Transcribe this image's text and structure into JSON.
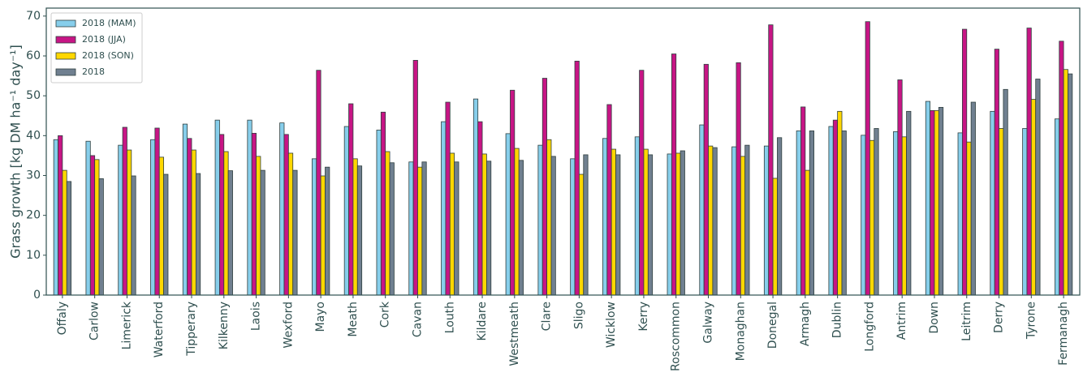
{
  "chart_data": {
    "type": "bar",
    "ylabel": "Grass growth [kg DM ha⁻¹ day⁻¹]",
    "categories": [
      "Offaly",
      "Carlow",
      "Limerick",
      "Waterford",
      "Tipperary",
      "Kilkenny",
      "Laois",
      "Wexford",
      "Mayo",
      "Meath",
      "Cork",
      "Cavan",
      "Louth",
      "Kildare",
      "Westmeath",
      "Clare",
      "Sligo",
      "Wicklow",
      "Kerry",
      "Roscommon",
      "Galway",
      "Monaghan",
      "Donegal",
      "Armagh",
      "Dublin",
      "Longford",
      "Antrim",
      "Down",
      "Leitrim",
      "Derry",
      "Tyrone",
      "Fermanagh"
    ],
    "series": [
      {
        "name": "2018 (MAM)",
        "color": "#87ceeb",
        "values": [
          39,
          38.6,
          37.6,
          39,
          42.9,
          43.9,
          43.9,
          43.2,
          34.2,
          42.3,
          41.4,
          33.4,
          43.5,
          49.2,
          40.5,
          37.6,
          34.2,
          39.3,
          39.7,
          35.4,
          42.7,
          37.2,
          37.4,
          41.2,
          42.3,
          40.1,
          41,
          48.6,
          40.7,
          46.1,
          41.8,
          44.2
        ]
      },
      {
        "name": "2018 (JJA)",
        "color": "#c71585",
        "values": [
          40,
          35,
          42.1,
          41.9,
          39.3,
          40.3,
          40.6,
          40.3,
          56.4,
          48,
          45.9,
          58.9,
          48.4,
          43.5,
          51.4,
          54.4,
          58.7,
          47.8,
          56.4,
          60.5,
          57.9,
          58.3,
          67.8,
          47.2,
          43.9,
          68.6,
          54,
          46.3,
          66.7,
          61.7,
          67,
          63.7
        ]
      },
      {
        "name": "2018 (SON)",
        "color": "#ffd700",
        "values": [
          31.3,
          34,
          36.4,
          34.6,
          36.4,
          36,
          34.8,
          35.6,
          29.9,
          34.2,
          36,
          32.1,
          35.6,
          35.4,
          36.8,
          39,
          30.3,
          36.6,
          36.6,
          35.6,
          37.4,
          34.8,
          29.3,
          31.3,
          46.1,
          38.8,
          39.7,
          46.3,
          38.4,
          41.8,
          49.1,
          56.6
        ]
      },
      {
        "name": "2018",
        "color": "#708090",
        "values": [
          28.5,
          29.2,
          29.9,
          30.3,
          30.5,
          31.2,
          31.3,
          31.3,
          32.1,
          32.4,
          33.2,
          33.4,
          33.4,
          33.6,
          33.8,
          34.8,
          35.2,
          35.2,
          35.2,
          36.2,
          37,
          37.6,
          39.5,
          41.2,
          41.2,
          41.8,
          46.1,
          47.1,
          48.4,
          51.6,
          54.2,
          55.5
        ]
      }
    ],
    "ylim": [
      0,
      72
    ],
    "yticks": [
      0,
      10,
      20,
      30,
      40,
      50,
      60,
      70
    ],
    "legend": "upper left",
    "grid": false
  }
}
